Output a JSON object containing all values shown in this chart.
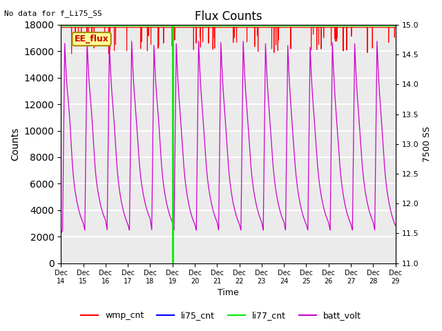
{
  "title": "Flux Counts",
  "top_left_text": "No data for f_Li75_SS",
  "ylabel_left": "Counts",
  "ylabel_right": "7500 SS",
  "xlabel": "Time",
  "ylim_left": [
    0,
    18000
  ],
  "ylim_right": [
    11.0,
    15.0
  ],
  "yticks_left": [
    0,
    2000,
    4000,
    6000,
    8000,
    10000,
    12000,
    14000,
    16000,
    18000
  ],
  "yticks_right": [
    11.0,
    11.5,
    12.0,
    12.5,
    13.0,
    13.5,
    14.0,
    14.5,
    15.0
  ],
  "xticklabels": [
    "Dec\n14",
    "Dec\n15",
    "Dec\n16",
    "Dec\n17",
    "Dec\n18",
    "Dec\n19",
    "Dec\n20",
    "Dec\n21",
    "Dec\n22",
    "Dec\n23",
    "Dec\n24",
    "Dec\n25",
    "Dec\n26",
    "Dec\n27",
    "Dec\n28",
    "Dec\n29"
  ],
  "wmp_cnt_color": "#ff0000",
  "li75_cnt_color": "#0000ff",
  "li77_cnt_color": "#00ee00",
  "batt_volt_color": "#cc00cc",
  "annotation_text": "EE_flux",
  "annotation_color": "#cc0000",
  "annotation_bg": "#ffff99",
  "annotation_edge": "#aa8800",
  "vline_x_day": 5,
  "wmp_cnt_value": 17800,
  "li77_cnt_value": 17900,
  "num_days": 15,
  "background_color": "#ebebeb",
  "grid_color": "#ffffff"
}
